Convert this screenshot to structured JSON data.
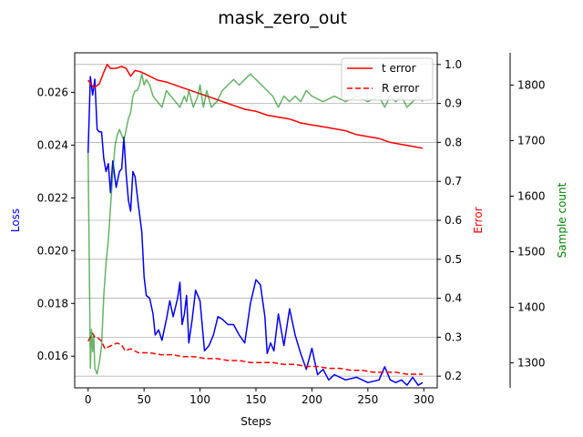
{
  "chart_data": {
    "type": "line",
    "title": "mask_zero_out",
    "xlabel": "Steps",
    "xlim": [
      -12,
      312
    ],
    "xticks": [
      0,
      50,
      100,
      150,
      200,
      250,
      300
    ],
    "axes": {
      "loss": {
        "label": "Loss",
        "color": "#0000ff",
        "ylim": [
          0.0148,
          0.0275
        ],
        "ticks": [
          0.016,
          0.018,
          0.02,
          0.022,
          0.024,
          0.026
        ],
        "tick_format": "3"
      },
      "error": {
        "label": "Error",
        "color": "#ff0000",
        "ylim": [
          0.17,
          1.03
        ],
        "ticks": [
          0.2,
          0.3,
          0.4,
          0.5,
          0.6,
          0.7,
          0.8,
          0.9,
          1.0
        ],
        "tick_format": "1"
      },
      "samples": {
        "label": "Sample count",
        "color": "#008000",
        "ylim": [
          1255,
          1858
        ],
        "ticks": [
          1300,
          1400,
          1500,
          1600,
          1700,
          1800
        ],
        "tick_format": "0"
      }
    },
    "grid": "horizontal lines at Error ticks",
    "legend": {
      "placement": "top-right",
      "entries": [
        {
          "label": "t error",
          "color": "#ff0000",
          "dash": "solid"
        },
        {
          "label": "R error",
          "color": "#ff0000",
          "dash": "dashed"
        }
      ]
    },
    "series": [
      {
        "name": "Loss",
        "axis": "loss",
        "color": "#0000ff",
        "width": 1.5,
        "dash": "solid",
        "x": [
          0,
          2,
          4,
          6,
          8,
          10,
          12,
          14,
          16,
          18,
          20,
          22,
          25,
          28,
          30,
          32,
          34,
          36,
          38,
          40,
          42,
          45,
          48,
          50,
          52,
          55,
          58,
          60,
          63,
          66,
          70,
          73,
          76,
          80,
          82,
          84,
          86,
          88,
          90,
          93,
          96,
          100,
          104,
          108,
          112,
          116,
          120,
          125,
          130,
          135,
          140,
          145,
          150,
          154,
          158,
          160,
          163,
          166,
          170,
          175,
          180,
          185,
          190,
          195,
          200,
          205,
          210,
          215,
          220,
          230,
          240,
          250,
          260,
          265,
          270,
          275,
          280,
          285,
          290,
          295,
          299
        ],
        "values": [
          0.0237,
          0.0266,
          0.0259,
          0.0265,
          0.0246,
          0.0245,
          0.0245,
          0.0235,
          0.023,
          0.0233,
          0.0222,
          0.0234,
          0.0224,
          0.023,
          0.0231,
          0.0243,
          0.0229,
          0.0219,
          0.0215,
          0.023,
          0.0228,
          0.0217,
          0.0207,
          0.019,
          0.0183,
          0.0182,
          0.0176,
          0.0168,
          0.017,
          0.0166,
          0.0174,
          0.0181,
          0.0175,
          0.0182,
          0.0188,
          0.0172,
          0.0176,
          0.0183,
          0.0165,
          0.0174,
          0.0185,
          0.0181,
          0.0162,
          0.0164,
          0.0168,
          0.0175,
          0.0174,
          0.0172,
          0.0172,
          0.0168,
          0.0165,
          0.018,
          0.0189,
          0.0187,
          0.0175,
          0.0161,
          0.0165,
          0.0162,
          0.0176,
          0.0164,
          0.0178,
          0.0168,
          0.0161,
          0.0155,
          0.0163,
          0.0153,
          0.0155,
          0.0151,
          0.0153,
          0.0151,
          0.0152,
          0.015,
          0.0151,
          0.0156,
          0.0151,
          0.015,
          0.0151,
          0.0149,
          0.0152,
          0.0149,
          0.015
        ]
      },
      {
        "name": "t error",
        "axis": "error",
        "color": "#ff0000",
        "width": 1.5,
        "dash": "solid",
        "x": [
          0,
          5,
          10,
          14,
          17,
          20,
          25,
          30,
          34,
          38,
          42,
          48,
          55,
          62,
          70,
          80,
          90,
          100,
          110,
          120,
          130,
          140,
          150,
          160,
          170,
          180,
          190,
          200,
          210,
          220,
          230,
          240,
          250,
          260,
          270,
          280,
          290,
          299
        ],
        "values": [
          0.96,
          0.94,
          0.95,
          0.98,
          1.0,
          0.99,
          0.99,
          0.995,
          0.99,
          0.97,
          0.985,
          0.98,
          0.97,
          0.96,
          0.955,
          0.945,
          0.935,
          0.925,
          0.915,
          0.905,
          0.895,
          0.885,
          0.88,
          0.87,
          0.865,
          0.86,
          0.85,
          0.845,
          0.84,
          0.835,
          0.83,
          0.82,
          0.815,
          0.81,
          0.8,
          0.795,
          0.79,
          0.785
        ]
      },
      {
        "name": "R error",
        "axis": "error",
        "color": "#ff0000",
        "width": 1.5,
        "dash": "dashed",
        "x": [
          0,
          2,
          4,
          6,
          8,
          12,
          15,
          18,
          22,
          26,
          30,
          33,
          38,
          45,
          55,
          65,
          75,
          85,
          95,
          105,
          115,
          125,
          135,
          145,
          155,
          165,
          175,
          185,
          195,
          205,
          215,
          225,
          235,
          245,
          255,
          265,
          275,
          285,
          299
        ],
        "values": [
          0.29,
          0.3,
          0.31,
          0.3,
          0.3,
          0.29,
          0.27,
          0.275,
          0.28,
          0.285,
          0.28,
          0.265,
          0.27,
          0.26,
          0.26,
          0.255,
          0.255,
          0.25,
          0.25,
          0.245,
          0.245,
          0.24,
          0.24,
          0.235,
          0.235,
          0.235,
          0.23,
          0.23,
          0.225,
          0.225,
          0.22,
          0.22,
          0.215,
          0.215,
          0.21,
          0.21,
          0.21,
          0.205,
          0.205
        ]
      },
      {
        "name": "Sample count",
        "axis": "samples",
        "color": "#008000",
        "width": 1.5,
        "dash": "solid",
        "opacity": 0.6,
        "x": [
          0,
          1,
          2,
          3,
          4,
          5,
          6,
          8,
          10,
          12,
          14,
          16,
          18,
          20,
          22,
          24,
          26,
          28,
          30,
          32,
          34,
          36,
          38,
          40,
          42,
          44,
          46,
          48,
          50,
          52,
          55,
          58,
          62,
          66,
          70,
          74,
          78,
          82,
          86,
          88,
          90,
          94,
          98,
          100,
          103,
          106,
          110,
          115,
          120,
          125,
          130,
          135,
          140,
          145,
          150,
          155,
          160,
          165,
          170,
          175,
          180,
          185,
          190,
          195,
          200,
          210,
          220,
          230,
          240,
          250,
          260,
          265,
          270,
          275,
          280,
          285,
          290,
          295,
          299
        ],
        "values": [
          1680,
          1480,
          1290,
          1360,
          1320,
          1350,
          1290,
          1280,
          1300,
          1330,
          1420,
          1480,
          1520,
          1580,
          1640,
          1690,
          1710,
          1720,
          1710,
          1700,
          1720,
          1740,
          1750,
          1780,
          1790,
          1790,
          1800,
          1820,
          1800,
          1810,
          1800,
          1780,
          1770,
          1760,
          1790,
          1780,
          1770,
          1760,
          1780,
          1770,
          1790,
          1760,
          1780,
          1800,
          1760,
          1790,
          1760,
          1770,
          1790,
          1800,
          1810,
          1800,
          1810,
          1820,
          1810,
          1800,
          1790,
          1780,
          1760,
          1780,
          1770,
          1780,
          1770,
          1790,
          1780,
          1770,
          1780,
          1770,
          1780,
          1770,
          1780,
          1760,
          1780,
          1770,
          1780,
          1760,
          1770,
          1780,
          1770
        ]
      }
    ]
  }
}
